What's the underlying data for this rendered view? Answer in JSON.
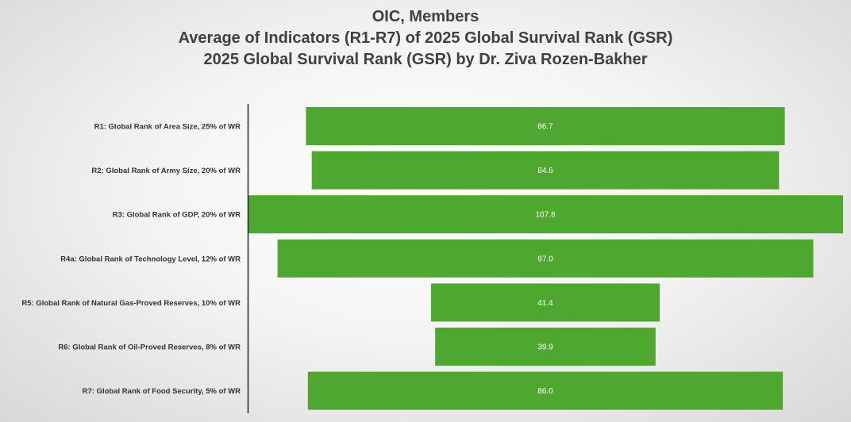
{
  "chart_data": {
    "type": "bar",
    "orientation": "horizontal",
    "layout": "centered",
    "title": [
      "OIC, Members",
      "Average of Indicators (R1-R7) of 2025 Global Survival Rank (GSR)",
      "2025 Global Survival Rank (GSR) by Dr. Ziva Rozen-Bakher"
    ],
    "categories": [
      "R1: Global Rank of Area Size, 25% of WR",
      "R2: Global Rank of Army Size, 20% of WR",
      "R3: Global Rank of GDP, 20% of WR",
      "R4a: Global Rank of Technology Level, 12% of WR",
      "R5: Global Rank of Natural Gas-Proved Reserves, 10% of WR",
      "R6: Global Rank of Oil-Proved Reserves, 8% of WR",
      "R7: Global Rank of Food Security, 5% of WR"
    ],
    "values": [
      86.7,
      84.6,
      107.8,
      97.0,
      41.4,
      39.9,
      86.0
    ],
    "value_labels": [
      "86.7",
      "84.6",
      "107.8",
      "97.0",
      "41.4",
      "39.9",
      "86.0"
    ],
    "xlim": [
      0,
      107.8
    ],
    "xlabel": "",
    "ylabel": "",
    "grid": false,
    "legend": "none",
    "bar_color": "#4ea72e"
  }
}
